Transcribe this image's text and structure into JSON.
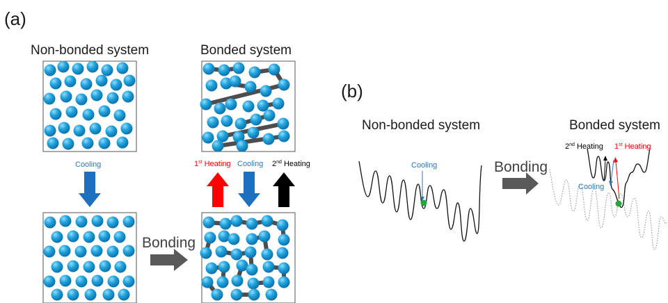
{
  "panel_a": {
    "label": "(a)",
    "title_left": "Non-bonded system",
    "title_right": "Bonded system",
    "cooling_label": "Cooling",
    "bonding_label": "Bonding",
    "heat1_base": "1",
    "heat1_sup": "st",
    "heat1_rest": " Heating",
    "cooling2_label": "Cooling",
    "heat2_base": "2",
    "heat2_sup": "nd",
    "heat2_rest": " Heating"
  },
  "panel_b": {
    "label": "(b)",
    "title_left": "Non-bonded system",
    "title_right": "Bonded system",
    "cooling_label": "Cooling",
    "bonding_label": "Bonding",
    "heat2_base": "2",
    "heat2_sup": "nd",
    "heat2_rest": " Heating",
    "heat1_base": "1",
    "heat1_sup": "st",
    "heat1_rest": " Heating",
    "cooling2_label": "Cooling"
  },
  "colors": {
    "sphere": "#1fa3dc",
    "sphere_dark": "#0f6fa8",
    "bond": "#4d4d4d",
    "cooling_blue": "#2e75b6",
    "heating_red": "#ff0000",
    "heating_black": "#000000",
    "state_dot": "#22a838"
  }
}
